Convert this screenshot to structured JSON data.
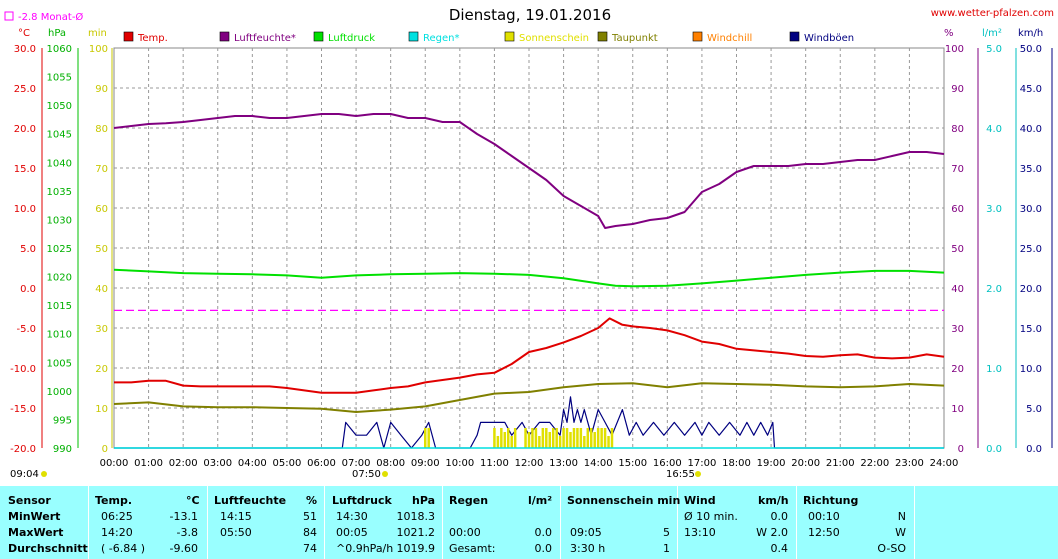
{
  "header": {
    "title": "Dienstag, 19.01.2016",
    "site": "www.wetter-pfalzen.com",
    "month_avg": "-2.8 Monat-Ø"
  },
  "units": {
    "temp": "°C",
    "pressure": "hPa",
    "sun": "min",
    "humidity": "%",
    "rain": "l/m²",
    "wind": "km/h"
  },
  "colors": {
    "temp": "#e00000",
    "humidity": "#800080",
    "pressure": "#00e000",
    "rain": "#00e0e0",
    "sun": "#e0e000",
    "dewpoint": "#808000",
    "windchill": "#ff8000",
    "gust": "#000080",
    "month_avg": "#ff00ff"
  },
  "legend": [
    {
      "key": "temp",
      "label": "Temp."
    },
    {
      "key": "humidity",
      "label": "Luftfeuchte*"
    },
    {
      "key": "pressure",
      "label": "Luftdruck"
    },
    {
      "key": "rain",
      "label": "Regen*"
    },
    {
      "key": "sun",
      "label": "Sonnenschein"
    },
    {
      "key": "dewpoint",
      "label": "Taupunkt"
    },
    {
      "key": "windchill",
      "label": "Windchill"
    },
    {
      "key": "gust",
      "label": "Windböen"
    }
  ],
  "axes": {
    "temp": {
      "ticks": [
        "30.0",
        "25.0",
        "20.0",
        "15.0",
        "10.0",
        "5.0",
        "0.0",
        "-5.0",
        "-10.0",
        "-15.0",
        "-20.0"
      ],
      "range": [
        -20,
        30
      ]
    },
    "pressure": {
      "ticks": [
        "1060",
        "1055",
        "1050",
        "1045",
        "1040",
        "1035",
        "1030",
        "1025",
        "1020",
        "1015",
        "1010",
        "1005",
        "1000",
        "995",
        "990"
      ],
      "range": [
        990,
        1060
      ]
    },
    "sun": {
      "ticks": [
        "100",
        "90",
        "80",
        "70",
        "60",
        "50",
        "40",
        "30",
        "20",
        "10",
        "0"
      ],
      "range": [
        0,
        100
      ]
    },
    "humidity": {
      "ticks": [
        "100",
        "90",
        "80",
        "70",
        "60",
        "50",
        "40",
        "30",
        "20",
        "10",
        "0"
      ],
      "range": [
        0,
        100
      ]
    },
    "rain": {
      "ticks": [
        "5.0",
        "4.0",
        "3.0",
        "2.0",
        "1.0",
        "0.0"
      ],
      "range": [
        0,
        5
      ]
    },
    "wind": {
      "ticks": [
        "50.0",
        "45.0",
        "40.0",
        "35.0",
        "30.0",
        "25.0",
        "20.0",
        "15.0",
        "10.0",
        "5.0",
        "0.0"
      ],
      "range": [
        0,
        50
      ]
    },
    "x": {
      "ticks": [
        "00:00",
        "01:00",
        "02:00",
        "03:00",
        "04:00",
        "05:00",
        "06:00",
        "07:00",
        "08:00",
        "09:00",
        "10:00",
        "11:00",
        "12:00",
        "13:00",
        "14:00",
        "15:00",
        "16:00",
        "17:00",
        "18:00",
        "19:00",
        "20:00",
        "21:00",
        "22:00",
        "23:00",
        "24:00"
      ],
      "range": [
        0,
        24
      ]
    }
  },
  "annotations": {
    "moonrise": "09:04",
    "sunrise": "07:50",
    "sunset": "16:55"
  },
  "chart_data": {
    "type": "line",
    "title": "Dienstag, 19.01.2016",
    "grid": true,
    "x_unit": "hour of day",
    "month_avg_temp": -2.8,
    "series": [
      {
        "name": "Luftfeuchte*",
        "key": "humidity",
        "axis": "humidity",
        "x": [
          0,
          0.5,
          1,
          1.5,
          2,
          2.5,
          3,
          3.5,
          4,
          4.5,
          5,
          5.5,
          6,
          6.5,
          7,
          7.5,
          8,
          8.5,
          9,
          9.5,
          10,
          10.5,
          11,
          11.5,
          12,
          12.5,
          13,
          13.5,
          14,
          14.2,
          14.5,
          15,
          15.5,
          16,
          16.5,
          17,
          17.5,
          18,
          18.5,
          19,
          19.5,
          20,
          20.5,
          21,
          21.5,
          22,
          22.5,
          23,
          23.5,
          24
        ],
        "y": [
          80,
          80.5,
          81,
          81.2,
          81.5,
          82,
          82.5,
          83,
          83,
          82.5,
          82.5,
          83,
          83.5,
          83.5,
          83,
          83.5,
          83.5,
          82.5,
          82.5,
          81.5,
          81.5,
          78.5,
          76,
          73,
          70,
          67,
          63,
          60.5,
          58,
          55,
          55.5,
          56,
          57,
          57.5,
          59,
          64,
          66,
          69,
          70.5,
          70.5,
          70.5,
          71,
          71,
          71.5,
          72,
          72,
          73,
          74,
          74,
          73.5
        ]
      },
      {
        "name": "Luftdruck",
        "key": "pressure",
        "axis": "pressure",
        "x": [
          0,
          1,
          2,
          3,
          4,
          5,
          6,
          7,
          8,
          9,
          10,
          11,
          12,
          13,
          14,
          14.5,
          15,
          16,
          17,
          18,
          19,
          20,
          21,
          22,
          23,
          24
        ],
        "y": [
          1021.2,
          1020.9,
          1020.6,
          1020.5,
          1020.4,
          1020.2,
          1019.8,
          1020.2,
          1020.4,
          1020.5,
          1020.6,
          1020.5,
          1020.3,
          1019.7,
          1018.8,
          1018.4,
          1018.3,
          1018.4,
          1018.8,
          1019.3,
          1019.8,
          1020.3,
          1020.7,
          1021,
          1021,
          1020.7
        ]
      },
      {
        "name": "Temp.",
        "key": "temp",
        "axis": "temp",
        "x": [
          0,
          0.5,
          1,
          1.5,
          2,
          2.5,
          3,
          3.5,
          4,
          4.5,
          5,
          5.5,
          6,
          6.5,
          7,
          7.5,
          8,
          8.5,
          9,
          9.5,
          10,
          10.5,
          11,
          11.5,
          12,
          12.5,
          13,
          13.5,
          14,
          14.33,
          14.7,
          15,
          15.5,
          16,
          16.5,
          17,
          17.5,
          18,
          18.5,
          19,
          19.5,
          20,
          20.5,
          21,
          21.5,
          22,
          22.5,
          23,
          23.5,
          24
        ],
        "y": [
          -11.8,
          -11.8,
          -11.6,
          -11.6,
          -12.2,
          -12.3,
          -12.3,
          -12.3,
          -12.3,
          -12.3,
          -12.5,
          -12.8,
          -13.1,
          -13.1,
          -13.1,
          -12.8,
          -12.5,
          -12.3,
          -11.8,
          -11.5,
          -11.2,
          -10.8,
          -10.6,
          -9.5,
          -8,
          -7.5,
          -6.8,
          -6,
          -5,
          -3.8,
          -4.6,
          -4.8,
          -5,
          -5.3,
          -5.9,
          -6.7,
          -7,
          -7.6,
          -7.8,
          -8,
          -8.2,
          -8.5,
          -8.6,
          -8.4,
          -8.3,
          -8.7,
          -8.8,
          -8.7,
          -8.3,
          -8.6
        ]
      },
      {
        "name": "Taupunkt",
        "key": "dewpoint",
        "axis": "temp",
        "x": [
          0,
          1,
          2,
          3,
          4,
          5,
          6,
          7,
          8,
          9,
          10,
          11,
          12,
          13,
          14,
          15,
          16,
          17,
          18,
          19,
          20,
          21,
          22,
          23,
          24
        ],
        "y": [
          -14.5,
          -14.3,
          -14.8,
          -14.9,
          -14.9,
          -15,
          -15.1,
          -15.5,
          -15.2,
          -14.8,
          -14,
          -13.2,
          -13,
          -12.4,
          -12,
          -11.9,
          -12.4,
          -11.9,
          -12,
          -12.1,
          -12.3,
          -12.4,
          -12.3,
          -12,
          -12.2
        ]
      },
      {
        "name": "Windböen",
        "key": "gust",
        "axis": "wind",
        "x": [
          0,
          6.6,
          6.7,
          7,
          7.3,
          7.6,
          7.8,
          8,
          8.3,
          8.6,
          8.9,
          9.1,
          9.3,
          9.6,
          10.3,
          10.5,
          10.6,
          11,
          11.3,
          11.5,
          11.8,
          12,
          12.3,
          12.6,
          12.9,
          13,
          13.1,
          13.2,
          13.3,
          13.4,
          13.5,
          13.6,
          13.8,
          14,
          14.2,
          14.4,
          14.7,
          14.9,
          15.1,
          15.3,
          15.6,
          15.9,
          16.2,
          16.5,
          16.8,
          17,
          17.2,
          17.5,
          17.8,
          18.1,
          18.3,
          18.5,
          18.7,
          18.9,
          19.05,
          19.1,
          24
        ],
        "y": [
          0,
          0,
          3.2,
          1.6,
          1.6,
          3.2,
          0,
          3.2,
          1.6,
          0,
          1.6,
          3.2,
          0,
          0,
          0,
          1.6,
          3.2,
          3.2,
          3.2,
          1.6,
          3.2,
          1.6,
          3.2,
          3.2,
          1.6,
          4.8,
          3.2,
          6.4,
          3.2,
          4.8,
          3.2,
          4.8,
          1.6,
          4.8,
          3.2,
          1.6,
          4.8,
          1.6,
          3.2,
          1.6,
          3.2,
          1.6,
          3.2,
          1.6,
          3.2,
          1.6,
          3.2,
          1.6,
          3.2,
          1.6,
          3.2,
          1.6,
          3.2,
          1.6,
          3.2,
          0,
          0
        ]
      },
      {
        "name": "Sonnenschein",
        "key": "sun",
        "axis": "sun",
        "x": [
          9.0,
          9.05,
          9.1,
          11.0,
          11.1,
          11.2,
          11.3,
          11.4,
          11.5,
          11.6,
          11.9,
          12.0,
          12.1,
          12.2,
          12.3,
          12.4,
          12.5,
          12.6,
          12.7,
          12.8,
          12.9,
          13.0,
          13.1,
          13.2,
          13.3,
          13.4,
          13.5,
          13.6,
          13.7,
          13.8,
          13.9,
          14.0,
          14.1,
          14.2,
          14.3,
          14.4
        ],
        "y": [
          5,
          0,
          5,
          5,
          3,
          5,
          4,
          5,
          3,
          5,
          5,
          4,
          5,
          5,
          3,
          5,
          5,
          4,
          5,
          5,
          3,
          5,
          5,
          4,
          5,
          5,
          5,
          3,
          5,
          5,
          4,
          5,
          5,
          5,
          3,
          5
        ]
      },
      {
        "name": "Regen*",
        "key": "rain",
        "axis": "rain",
        "x": [
          0,
          24
        ],
        "y": [
          0,
          0
        ]
      }
    ]
  },
  "table": {
    "headers": {
      "sensor": "Sensor",
      "temp": "Temp.",
      "temp_unit": "°C",
      "hum": "Luftfeuchte",
      "hum_unit": "%",
      "press": "Luftdruck",
      "press_unit": "hPa",
      "rain": "Regen",
      "rain_unit": "l/m²",
      "sun": "Sonnenschein min",
      "wind": "Wind",
      "wind_unit": "km/h",
      "dir": "Richtung"
    },
    "rows": [
      {
        "label": "MinWert",
        "temp_time": "06:25",
        "temp_val": "-13.1",
        "hum_time": "14:15",
        "hum_val": "51",
        "press_time": "14:30",
        "press_val": "1018.3",
        "rain_time": "",
        "rain_val": "",
        "sun_time": "",
        "sun_val": "",
        "wind_time": "Ø 10 min.",
        "wind_val": "0.0",
        "dir_time": "00:10",
        "dir_val": "N"
      },
      {
        "label": "MaxWert",
        "temp_time": "14:20",
        "temp_val": "-3.8",
        "hum_time": "05:50",
        "hum_val": "84",
        "press_time": "00:05",
        "press_val": "1021.2",
        "rain_time": "00:00",
        "rain_val": "0.0",
        "sun_time": "09:05",
        "sun_val": "5",
        "wind_time": "13:10",
        "wind_val": "W 2.0",
        "dir_time": "12:50",
        "dir_val": "W"
      },
      {
        "label": "Durchschnitt",
        "temp_time": "( -6.84 )",
        "temp_val": "-9.60",
        "hum_time": "",
        "hum_val": "74",
        "press_time": "^0.9hPa/h",
        "press_val": "1019.9",
        "rain_time": "Gesamt:",
        "rain_val": "0.0",
        "sun_time": "3:30 h",
        "sun_val": "1",
        "wind_time": "",
        "wind_val": "0.4",
        "dir_time": "",
        "dir_val": "O-SO"
      }
    ]
  }
}
